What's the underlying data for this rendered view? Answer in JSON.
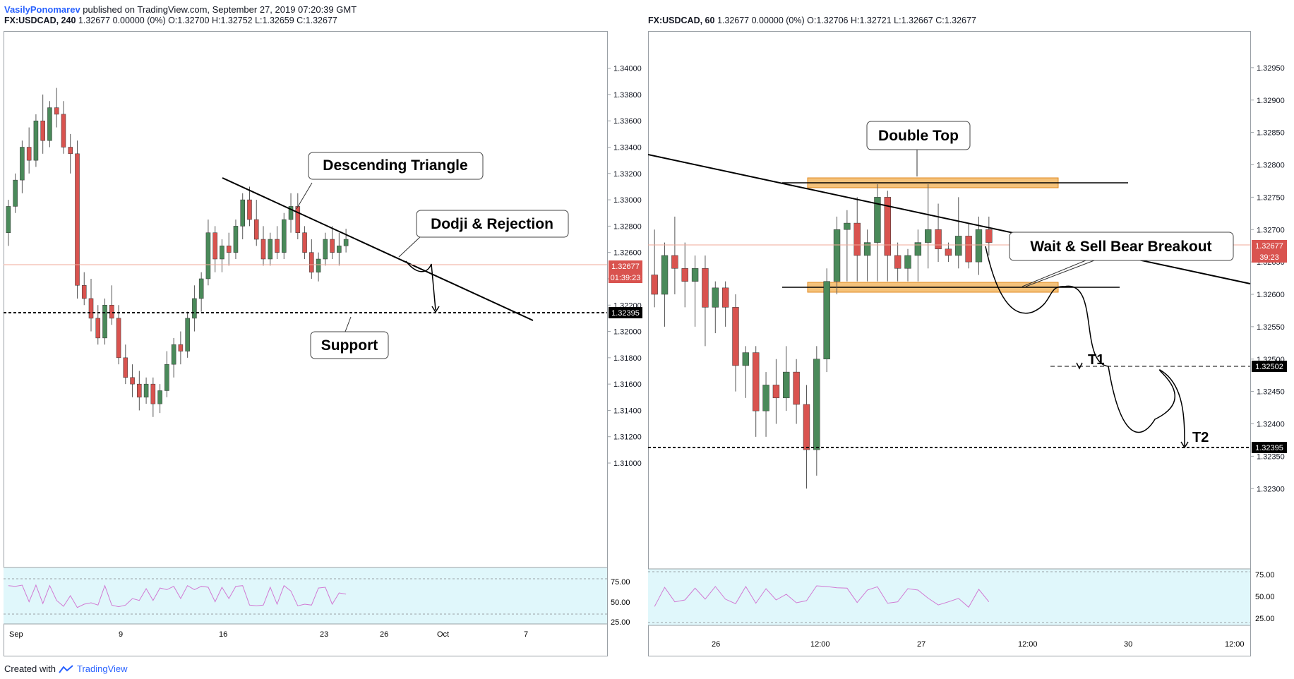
{
  "header": {
    "author": "VasilyPonomarev",
    "published_text": "published on TradingView.com, September 27, 2019 07:20:39 GMT"
  },
  "footer": {
    "created_with": "Created with",
    "brand": "TradingView"
  },
  "colors": {
    "bull": "#4a8a5a",
    "bear": "#d9534f",
    "accent": "#2962ff",
    "zone": "#f5b25a",
    "rsi_bg": "#e0f7fb",
    "rsi_line": "#d17ad3"
  },
  "left_chart": {
    "symbol": "FX:USDCAD, 240",
    "quote": "1.32677 0.00000 (0%) O:1.32700 H:1.32752 L:1.32659 C:1.32677",
    "last_price": "1.32677",
    "countdown": "01:39:23",
    "support_price": "1.32395",
    "x_ticks": [
      "Sep",
      "9",
      "16",
      "23",
      "26",
      "Oct",
      "7"
    ],
    "rsi_ticks": [
      "75.00",
      "50.00",
      "25.00"
    ],
    "annotations": {
      "triangle": "Descending Triangle",
      "dodji": "Dodji & Rejection",
      "support": "Support"
    }
  },
  "right_chart": {
    "symbol": "FX:USDCAD, 60",
    "quote": "1.32677 0.00000 (0%) O:1.32706 H:1.32721 L:1.32667 C:1.32677",
    "last_price": "1.32677",
    "countdown": "39:23",
    "t1_price": "1.32502",
    "t2_price": "1.32395",
    "x_ticks": [
      "26",
      "12:00",
      "27",
      "12:00",
      "30",
      "12:00"
    ],
    "rsi_ticks": [
      "75.00",
      "50.00",
      "25.00"
    ],
    "annotations": {
      "double_top": "Double Top",
      "wait_sell": "Wait & Sell Bear Breakout",
      "t1": "T1",
      "t2": "T2"
    }
  },
  "chart_data": [
    {
      "type": "candlestick",
      "title": "FX:USDCAD, 240",
      "ylim": [
        1.3085,
        1.3425
      ],
      "y_ticks": [
        "1.34000",
        "1.33800",
        "1.33600",
        "1.33400",
        "1.33200",
        "1.33000",
        "1.32800",
        "1.32600",
        "1.32400",
        "1.32200",
        "1.32000",
        "1.31800",
        "1.31600",
        "1.31400",
        "1.31200",
        "1.31000"
      ],
      "candles": [
        [
          1.3275,
          1.33,
          1.3265,
          1.3295
        ],
        [
          1.3295,
          1.332,
          1.329,
          1.3315
        ],
        [
          1.3315,
          1.3345,
          1.3305,
          1.334
        ],
        [
          1.334,
          1.3355,
          1.332,
          1.333
        ],
        [
          1.333,
          1.3365,
          1.3325,
          1.336
        ],
        [
          1.336,
          1.338,
          1.3335,
          1.3345
        ],
        [
          1.3345,
          1.3375,
          1.334,
          1.337
        ],
        [
          1.337,
          1.3385,
          1.3355,
          1.3365
        ],
        [
          1.3365,
          1.3375,
          1.3335,
          1.334
        ],
        [
          1.334,
          1.335,
          1.332,
          1.3335
        ],
        [
          1.3335,
          1.3345,
          1.3225,
          1.3235
        ],
        [
          1.3235,
          1.3245,
          1.322,
          1.3225
        ],
        [
          1.3225,
          1.324,
          1.32,
          1.321
        ],
        [
          1.321,
          1.322,
          1.319,
          1.3195
        ],
        [
          1.3195,
          1.3225,
          1.319,
          1.322
        ],
        [
          1.322,
          1.3235,
          1.3205,
          1.321
        ],
        [
          1.321,
          1.322,
          1.3175,
          1.318
        ],
        [
          1.318,
          1.319,
          1.316,
          1.3165
        ],
        [
          1.3165,
          1.3175,
          1.315,
          1.316
        ],
        [
          1.316,
          1.317,
          1.314,
          1.315
        ],
        [
          1.315,
          1.3165,
          1.3145,
          1.316
        ],
        [
          1.316,
          1.3165,
          1.3135,
          1.3145
        ],
        [
          1.3145,
          1.316,
          1.3138,
          1.3155
        ],
        [
          1.3155,
          1.3185,
          1.315,
          1.3175
        ],
        [
          1.3175,
          1.3195,
          1.3165,
          1.319
        ],
        [
          1.319,
          1.32,
          1.3175,
          1.3185
        ],
        [
          1.3185,
          1.3215,
          1.318,
          1.321
        ],
        [
          1.321,
          1.3235,
          1.32,
          1.3225
        ],
        [
          1.3225,
          1.3245,
          1.3215,
          1.324
        ],
        [
          1.324,
          1.3285,
          1.3235,
          1.3275
        ],
        [
          1.3275,
          1.328,
          1.3245,
          1.3255
        ],
        [
          1.3255,
          1.327,
          1.3245,
          1.3265
        ],
        [
          1.3265,
          1.3275,
          1.325,
          1.326
        ],
        [
          1.326,
          1.3285,
          1.3255,
          1.328
        ],
        [
          1.328,
          1.3305,
          1.327,
          1.33
        ],
        [
          1.33,
          1.331,
          1.328,
          1.3285
        ],
        [
          1.3285,
          1.33,
          1.3265,
          1.327
        ],
        [
          1.327,
          1.328,
          1.325,
          1.3255
        ],
        [
          1.3255,
          1.3275,
          1.325,
          1.327
        ],
        [
          1.327,
          1.328,
          1.3255,
          1.326
        ],
        [
          1.326,
          1.329,
          1.3255,
          1.3285
        ],
        [
          1.3285,
          1.3305,
          1.3275,
          1.3295
        ],
        [
          1.3295,
          1.3305,
          1.327,
          1.3275
        ],
        [
          1.3275,
          1.328,
          1.3255,
          1.326
        ],
        [
          1.326,
          1.327,
          1.324,
          1.3245
        ],
        [
          1.3245,
          1.326,
          1.3238,
          1.3255
        ],
        [
          1.3255,
          1.3275,
          1.325,
          1.327
        ],
        [
          1.327,
          1.328,
          1.3255,
          1.326
        ],
        [
          1.326,
          1.3275,
          1.325,
          1.3265
        ],
        [
          1.3265,
          1.3278,
          1.326,
          1.327
        ]
      ],
      "trendline": [
        [
          1.332,
          "start"
        ],
        [
          1.324,
          "end"
        ]
      ],
      "support": 1.32395
    },
    {
      "type": "candlestick",
      "title": "FX:USDCAD, 60",
      "ylim": [
        1.322,
        1.33
      ],
      "y_ticks": [
        "1.32950",
        "1.32900",
        "1.32850",
        "1.32800",
        "1.32750",
        "1.32700",
        "1.32650",
        "1.32600",
        "1.32550",
        "1.32500",
        "1.32450",
        "1.32400",
        "1.32350",
        "1.32300"
      ],
      "candles": [
        [
          1.3263,
          1.327,
          1.3258,
          1.326
        ],
        [
          1.326,
          1.3268,
          1.3255,
          1.3266
        ],
        [
          1.3266,
          1.3272,
          1.326,
          1.3264
        ],
        [
          1.3264,
          1.3268,
          1.3258,
          1.3262
        ],
        [
          1.3262,
          1.3266,
          1.3255,
          1.3264
        ],
        [
          1.3264,
          1.3266,
          1.3252,
          1.3258
        ],
        [
          1.3258,
          1.3262,
          1.3254,
          1.3261
        ],
        [
          1.3261,
          1.3262,
          1.3255,
          1.3258
        ],
        [
          1.3258,
          1.326,
          1.3245,
          1.3249
        ],
        [
          1.3249,
          1.3252,
          1.3244,
          1.3251
        ],
        [
          1.3251,
          1.3252,
          1.3238,
          1.3242
        ],
        [
          1.3242,
          1.3248,
          1.3238,
          1.3246
        ],
        [
          1.3246,
          1.325,
          1.324,
          1.3244
        ],
        [
          1.3244,
          1.3252,
          1.3242,
          1.3248
        ],
        [
          1.3248,
          1.325,
          1.324,
          1.3243
        ],
        [
          1.3243,
          1.3246,
          1.323,
          1.3236
        ],
        [
          1.3236,
          1.3252,
          1.3232,
          1.325
        ],
        [
          1.325,
          1.3264,
          1.3248,
          1.3262
        ],
        [
          1.3262,
          1.3272,
          1.326,
          1.327
        ],
        [
          1.327,
          1.3273,
          1.3262,
          1.3271
        ],
        [
          1.3271,
          1.3275,
          1.3262,
          1.3266
        ],
        [
          1.3266,
          1.327,
          1.3262,
          1.3268
        ],
        [
          1.3268,
          1.3277,
          1.3262,
          1.3275
        ],
        [
          1.3275,
          1.3276,
          1.3262,
          1.3266
        ],
        [
          1.3266,
          1.3268,
          1.3262,
          1.3264
        ],
        [
          1.3264,
          1.3267,
          1.3262,
          1.3266
        ],
        [
          1.3266,
          1.327,
          1.3262,
          1.3268
        ],
        [
          1.3268,
          1.3277,
          1.3264,
          1.327
        ],
        [
          1.327,
          1.3274,
          1.3265,
          1.3267
        ],
        [
          1.3267,
          1.3268,
          1.3265,
          1.3266
        ],
        [
          1.3266,
          1.3275,
          1.3264,
          1.3269
        ],
        [
          1.3269,
          1.3271,
          1.3264,
          1.3265
        ],
        [
          1.3265,
          1.3272,
          1.3263,
          1.327
        ],
        [
          1.327,
          1.3272,
          1.3266,
          1.3268
        ]
      ],
      "double_top_zone": [
        1.32725,
        1.3274
      ],
      "base_zone": [
        1.32625,
        1.32635
      ],
      "t1": 1.32502,
      "t2": 1.32395
    }
  ]
}
